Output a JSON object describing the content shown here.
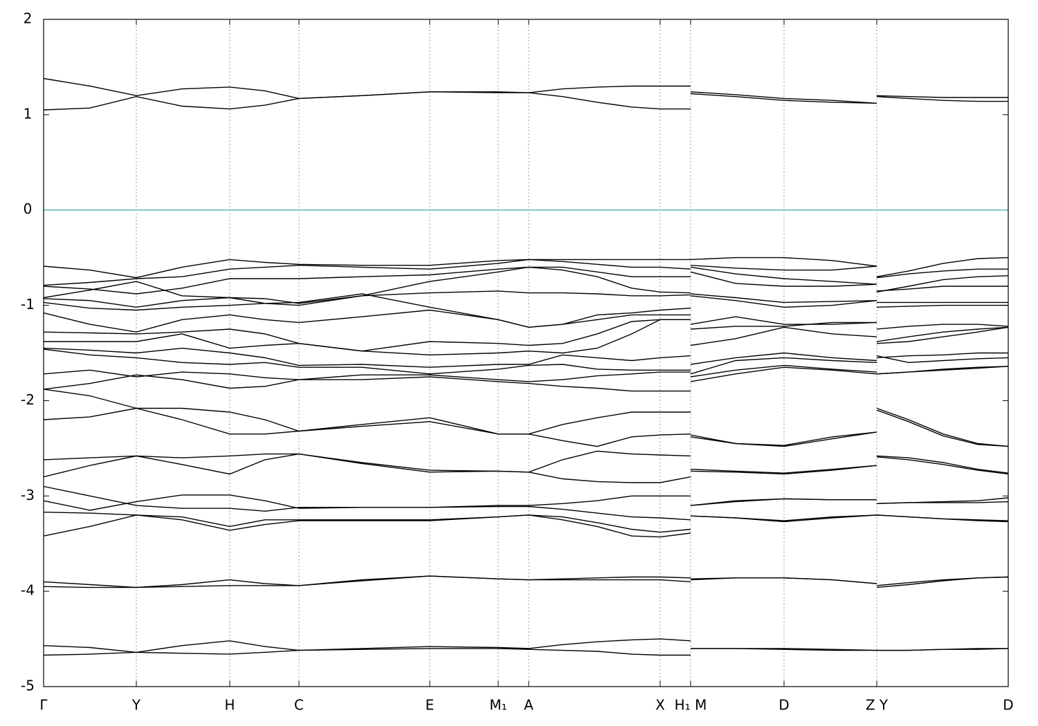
{
  "chart_data": {
    "type": "line",
    "xlim": [
      0,
      13.94
    ],
    "ylim": [
      -5,
      2
    ],
    "yticks": [
      -5,
      -4,
      -3,
      -2,
      -1,
      0,
      1,
      2
    ],
    "xticks": [
      {
        "value": 0,
        "label": "Γ"
      },
      {
        "value": 1.34,
        "label": "Y"
      },
      {
        "value": 2.69,
        "label": "H"
      },
      {
        "value": 3.69,
        "label": "C"
      },
      {
        "value": 5.58,
        "label": "E"
      },
      {
        "value": 6.57,
        "label": "M₁"
      },
      {
        "value": 7.01,
        "label": "A"
      },
      {
        "value": 8.91,
        "label": "X"
      },
      {
        "value": 9.35,
        "label": "H₁ M"
      },
      {
        "value": 10.7,
        "label": "D"
      },
      {
        "value": 12.04,
        "label": "Z Y"
      },
      {
        "value": 13.94,
        "label": "D"
      }
    ],
    "grid": true,
    "line_color": "#000000",
    "fermi_level": 0,
    "fermi_color": "#5ab4c8",
    "x": [
      0,
      0.67,
      1.34,
      2.0,
      2.69,
      3.2,
      3.69,
      4.6,
      5.58,
      6.57,
      7.01,
      7.5,
      8.0,
      8.5,
      8.91,
      9.35,
      9.35,
      9.35,
      10.0,
      10.7,
      11.4,
      12.04,
      12.04,
      12.04,
      12.5,
      13.0,
      13.5,
      13.94
    ],
    "series": [
      {
        "values": [
          1.38,
          1.3,
          1.2,
          1.27,
          1.29,
          1.25,
          1.17,
          1.2,
          1.24,
          1.24,
          1.23,
          1.27,
          1.29,
          1.3,
          1.3,
          1.3,
          null,
          1.24,
          1.21,
          1.17,
          1.15,
          1.12,
          null,
          1.2,
          1.19,
          1.18,
          1.18,
          1.18
        ]
      },
      {
        "values": [
          1.05,
          1.07,
          1.19,
          1.09,
          1.06,
          1.1,
          1.17,
          1.2,
          1.24,
          1.23,
          1.23,
          1.19,
          1.13,
          1.08,
          1.06,
          1.06,
          null,
          1.22,
          1.19,
          1.15,
          1.13,
          1.12,
          null,
          1.19,
          1.17,
          1.15,
          1.14,
          1.14
        ]
      },
      {
        "values": [
          -0.59,
          -0.63,
          -0.71,
          -0.6,
          -0.52,
          -0.55,
          -0.57,
          -0.58,
          -0.58,
          -0.53,
          -0.52,
          -0.52,
          -0.52,
          -0.52,
          -0.52,
          -0.52,
          null,
          -0.52,
          -0.5,
          -0.5,
          -0.53,
          -0.59,
          null,
          -0.7,
          -0.64,
          -0.56,
          -0.51,
          -0.5
        ]
      },
      {
        "values": [
          -0.79,
          -0.76,
          -0.72,
          -0.7,
          -0.62,
          -0.6,
          -0.58,
          -0.6,
          -0.62,
          -0.56,
          -0.52,
          -0.54,
          -0.57,
          -0.6,
          -0.6,
          -0.62,
          null,
          -0.58,
          -0.61,
          -0.63,
          -0.63,
          -0.59,
          null,
          -0.71,
          -0.67,
          -0.64,
          -0.62,
          -0.62
        ]
      },
      {
        "values": [
          -0.8,
          -0.83,
          -0.88,
          -0.82,
          -0.72,
          -0.72,
          -0.72,
          -0.7,
          -0.68,
          -0.62,
          -0.6,
          -0.63,
          -0.7,
          -0.82,
          -0.86,
          -0.87,
          null,
          -0.6,
          -0.67,
          -0.72,
          -0.75,
          -0.78,
          null,
          -0.86,
          -0.8,
          -0.73,
          -0.7,
          -0.69
        ]
      },
      {
        "values": [
          -0.92,
          -0.84,
          -0.75,
          -0.9,
          -0.92,
          -0.93,
          -0.98,
          -0.9,
          -0.75,
          -0.65,
          -0.6,
          -0.6,
          -0.65,
          -0.7,
          -0.7,
          -0.7,
          null,
          -0.65,
          -0.77,
          -0.8,
          -0.8,
          -0.78,
          null,
          -0.85,
          -0.83,
          -0.8,
          -0.8,
          -0.8
        ]
      },
      {
        "values": [
          -0.93,
          -0.95,
          -1.02,
          -0.95,
          -0.92,
          -0.98,
          -1.0,
          -0.9,
          -0.87,
          -0.85,
          -0.87,
          -0.87,
          -0.88,
          -0.9,
          -0.9,
          -0.89,
          null,
          -0.88,
          -0.92,
          -0.97,
          -0.96,
          -0.95,
          null,
          -0.97,
          -0.97,
          -0.97,
          -0.97,
          -0.97
        ]
      },
      {
        "values": [
          -0.97,
          -1.03,
          -1.05,
          -1.02,
          -1.0,
          -0.98,
          -0.97,
          -0.88,
          -1.02,
          -1.15,
          -1.23,
          -1.2,
          -1.1,
          -1.08,
          -1.05,
          -1.03,
          null,
          -0.9,
          -0.95,
          -1.02,
          -1.0,
          -0.95,
          null,
          -1.02,
          -1.01,
          -1.0,
          -1.0,
          -1.0
        ]
      },
      {
        "values": [
          -1.08,
          -1.2,
          -1.28,
          -1.15,
          -1.1,
          -1.15,
          -1.18,
          -1.12,
          -1.05,
          -1.15,
          -1.23,
          -1.2,
          -1.15,
          -1.1,
          -1.1,
          -1.1,
          null,
          -1.2,
          -1.12,
          -1.2,
          -1.2,
          -1.18,
          null,
          -1.25,
          -1.22,
          -1.2,
          -1.2,
          -1.22
        ]
      },
      {
        "values": [
          -1.28,
          -1.29,
          -1.3,
          -1.28,
          -1.25,
          -1.3,
          -1.4,
          -1.48,
          -1.38,
          -1.4,
          -1.42,
          -1.4,
          -1.3,
          -1.17,
          -1.15,
          -1.15,
          null,
          -1.25,
          -1.22,
          -1.22,
          -1.18,
          -1.18,
          null,
          -1.38,
          -1.33,
          -1.28,
          -1.25,
          -1.23
        ]
      },
      {
        "values": [
          -1.38,
          -1.38,
          -1.38,
          -1.3,
          -1.45,
          -1.42,
          -1.4,
          -1.48,
          -1.52,
          -1.5,
          -1.48,
          -1.5,
          -1.45,
          -1.3,
          -1.15,
          -1.15,
          null,
          -1.42,
          -1.35,
          -1.23,
          -1.3,
          -1.33,
          null,
          -1.4,
          -1.38,
          -1.33,
          -1.28,
          -1.23
        ]
      },
      {
        "values": [
          -1.45,
          -1.47,
          -1.5,
          -1.45,
          -1.5,
          -1.55,
          -1.63,
          -1.62,
          -1.65,
          -1.62,
          -1.62,
          -1.52,
          -1.55,
          -1.58,
          -1.55,
          -1.53,
          null,
          -1.62,
          -1.55,
          -1.5,
          -1.55,
          -1.58,
          null,
          -1.55,
          -1.53,
          -1.52,
          -1.5,
          -1.5
        ]
      },
      {
        "values": [
          -1.46,
          -1.52,
          -1.55,
          -1.6,
          -1.62,
          -1.6,
          -1.65,
          -1.65,
          -1.72,
          -1.67,
          -1.63,
          -1.62,
          -1.67,
          -1.68,
          -1.68,
          -1.68,
          null,
          -1.72,
          -1.58,
          -1.55,
          -1.58,
          -1.6,
          null,
          -1.53,
          -1.6,
          -1.58,
          -1.56,
          -1.55
        ]
      },
      {
        "values": [
          -1.72,
          -1.68,
          -1.75,
          -1.7,
          -1.72,
          -1.76,
          -1.78,
          -1.73,
          -1.73,
          -1.78,
          -1.8,
          -1.78,
          -1.74,
          -1.72,
          -1.7,
          -1.7,
          null,
          -1.75,
          -1.68,
          -1.63,
          -1.67,
          -1.7,
          null,
          -1.72,
          -1.7,
          -1.67,
          -1.65,
          -1.64
        ]
      },
      {
        "values": [
          -1.88,
          -1.82,
          -1.73,
          -1.78,
          -1.87,
          -1.85,
          -1.78,
          -1.78,
          -1.75,
          -1.8,
          -1.82,
          -1.85,
          -1.87,
          -1.9,
          -1.9,
          -1.9,
          null,
          -1.8,
          -1.72,
          -1.65,
          -1.68,
          -1.72,
          null,
          -1.72,
          -1.7,
          -1.68,
          -1.66,
          -1.64
        ]
      },
      {
        "values": [
          -1.88,
          -1.95,
          -2.08,
          -2.2,
          -2.35,
          -2.35,
          -2.32,
          -2.27,
          -2.22,
          -2.35,
          -2.35,
          -2.42,
          -2.48,
          -2.38,
          -2.36,
          -2.35,
          null,
          -2.38,
          -2.45,
          -2.48,
          -2.4,
          -2.33,
          null,
          -2.08,
          -2.2,
          -2.35,
          -2.45,
          -2.48
        ]
      },
      {
        "values": [
          -2.2,
          -2.17,
          -2.08,
          -2.08,
          -2.12,
          -2.2,
          -2.32,
          -2.25,
          -2.18,
          -2.35,
          -2.35,
          -2.25,
          -2.18,
          -2.12,
          -2.12,
          -2.12,
          null,
          -2.36,
          -2.45,
          -2.47,
          -2.38,
          -2.33,
          null,
          -2.1,
          -2.22,
          -2.37,
          -2.46,
          -2.48
        ]
      },
      {
        "values": [
          -2.62,
          -2.6,
          -2.58,
          -2.6,
          -2.58,
          -2.56,
          -2.56,
          -2.65,
          -2.73,
          -2.74,
          -2.75,
          -2.62,
          -2.53,
          -2.56,
          -2.57,
          -2.58,
          null,
          -2.72,
          -2.74,
          -2.76,
          -2.72,
          -2.68,
          null,
          -2.58,
          -2.6,
          -2.65,
          -2.72,
          -2.76
        ]
      },
      {
        "values": [
          -2.8,
          -2.68,
          -2.58,
          -2.67,
          -2.77,
          -2.62,
          -2.56,
          -2.66,
          -2.75,
          -2.74,
          -2.75,
          -2.82,
          -2.85,
          -2.86,
          -2.86,
          -2.8,
          null,
          -2.74,
          -2.75,
          -2.77,
          -2.73,
          -2.68,
          null,
          -2.59,
          -2.62,
          -2.67,
          -2.73,
          -2.77
        ]
      },
      {
        "values": [
          -2.9,
          -3.0,
          -3.1,
          -3.13,
          -3.13,
          -3.16,
          -3.12,
          -3.12,
          -3.12,
          -3.1,
          -3.1,
          -3.08,
          -3.05,
          -3.0,
          -3.0,
          -3.0,
          null,
          -3.1,
          -3.06,
          -3.03,
          -3.04,
          -3.04,
          null,
          -3.08,
          -3.07,
          -3.06,
          -3.05,
          -3.02
        ]
      },
      {
        "values": [
          -3.05,
          -3.15,
          -3.06,
          -2.99,
          -2.99,
          -3.05,
          -3.13,
          -3.12,
          -3.12,
          -3.11,
          -3.11,
          -3.14,
          -3.18,
          -3.22,
          -3.23,
          -3.25,
          null,
          -3.1,
          -3.05,
          -3.03,
          -3.04,
          -3.04,
          null,
          -3.08,
          -3.07,
          -3.07,
          -3.07,
          -3.06
        ]
      },
      {
        "values": [
          -3.17,
          -3.18,
          -3.2,
          -3.22,
          -3.32,
          -3.25,
          -3.25,
          -3.25,
          -3.25,
          -3.22,
          -3.2,
          -3.22,
          -3.28,
          -3.35,
          -3.38,
          -3.35,
          null,
          -3.21,
          -3.23,
          -3.26,
          -3.22,
          -3.2,
          null,
          -3.2,
          -3.22,
          -3.24,
          -3.25,
          -3.26
        ]
      },
      {
        "values": [
          -3.42,
          -3.32,
          -3.2,
          -3.25,
          -3.36,
          -3.3,
          -3.26,
          -3.26,
          -3.26,
          -3.22,
          -3.2,
          -3.25,
          -3.32,
          -3.42,
          -3.43,
          -3.39,
          null,
          -3.21,
          -3.23,
          -3.27,
          -3.23,
          -3.2,
          null,
          -3.2,
          -3.22,
          -3.24,
          -3.26,
          -3.27
        ]
      },
      {
        "values": [
          -3.9,
          -3.93,
          -3.96,
          -3.93,
          -3.88,
          -3.92,
          -3.94,
          -3.88,
          -3.84,
          -3.87,
          -3.88,
          -3.87,
          -3.86,
          -3.85,
          -3.85,
          -3.86,
          null,
          -3.87,
          -3.86,
          -3.86,
          -3.88,
          -3.92,
          null,
          -3.94,
          -3.91,
          -3.88,
          -3.86,
          -3.85
        ]
      },
      {
        "values": [
          -3.95,
          -3.96,
          -3.96,
          -3.95,
          -3.94,
          -3.94,
          -3.94,
          -3.89,
          -3.84,
          -3.87,
          -3.88,
          -3.88,
          -3.88,
          -3.88,
          -3.88,
          -3.9,
          null,
          -3.88,
          -3.86,
          -3.86,
          -3.88,
          -3.92,
          null,
          -3.96,
          -3.93,
          -3.89,
          -3.86,
          -3.85
        ]
      },
      {
        "values": [
          -4.57,
          -4.59,
          -4.64,
          -4.57,
          -4.52,
          -4.58,
          -4.62,
          -4.6,
          -4.58,
          -4.59,
          -4.6,
          -4.56,
          -4.53,
          -4.51,
          -4.5,
          -4.52,
          null,
          -4.6,
          -4.6,
          -4.6,
          -4.61,
          -4.62,
          null,
          -4.62,
          -4.62,
          -4.61,
          -4.6,
          -4.6
        ]
      },
      {
        "values": [
          -4.67,
          -4.66,
          -4.64,
          -4.65,
          -4.66,
          -4.64,
          -4.62,
          -4.61,
          -4.6,
          -4.6,
          -4.61,
          -4.62,
          -4.63,
          -4.66,
          -4.67,
          -4.67,
          null,
          -4.6,
          -4.6,
          -4.61,
          -4.62,
          -4.62,
          null,
          -4.62,
          -4.62,
          -4.61,
          -4.61,
          -4.6
        ]
      }
    ]
  }
}
